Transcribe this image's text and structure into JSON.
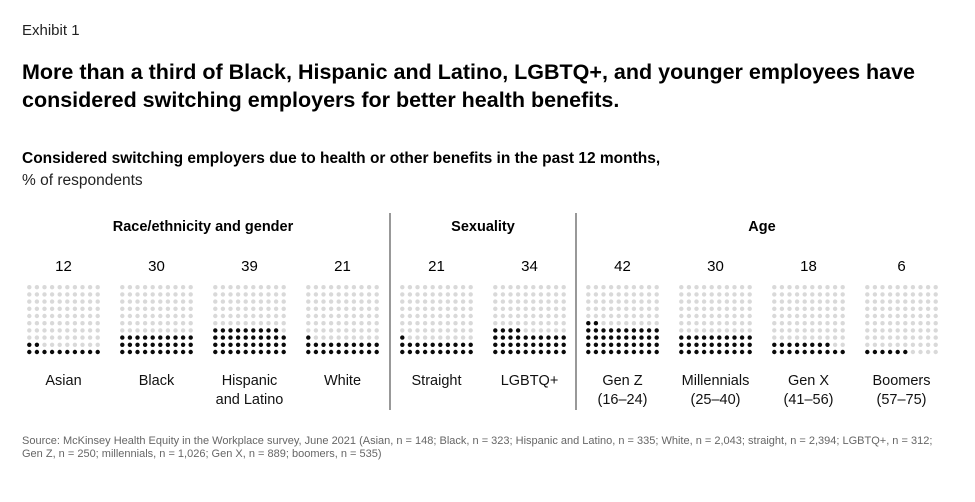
{
  "exhibit": "Exhibit 1",
  "title": "More than a third of Black, Hispanic and Latino, LGBTQ+, and younger employees have considered switching employers for better health benefits.",
  "subtitle": "Considered switching employers due to health or other benefits in the past 12 months,",
  "unit": "% of respondents",
  "source": "Source: McKinsey Health Equity in the Workplace survey, June 2021 (Asian, n = 148; Black, n = 323; Hispanic and Latino, n = 335; White, n = 2,043; straight, n = 2,394; LGBTQ+, n = 312; Gen Z, n = 250; millennials, n = 1,026; Gen X, n = 889; boomers, n = 535)",
  "colors": {
    "filled": "#0a0a0a",
    "empty": "#d9d9d9",
    "divider": "#555555"
  },
  "chart_data": {
    "type": "bar",
    "groups": [
      {
        "name": "Race/ethnicity and gender",
        "categories": [
          {
            "label": [
              "Asian"
            ],
            "value": 12
          },
          {
            "label": [
              "Black"
            ],
            "value": 30
          },
          {
            "label": [
              "Hispanic",
              "and Latino"
            ],
            "value": 39
          },
          {
            "label": [
              "White"
            ],
            "value": 21
          }
        ]
      },
      {
        "name": "Sexuality",
        "categories": [
          {
            "label": [
              "Straight"
            ],
            "value": 21
          },
          {
            "label": [
              "LGBTQ+"
            ],
            "value": 34
          }
        ]
      },
      {
        "name": "Age",
        "categories": [
          {
            "label": [
              "Gen Z",
              "(16–24)"
            ],
            "value": 42
          },
          {
            "label": [
              "Millennials",
              "(25–40)"
            ],
            "value": 30
          },
          {
            "label": [
              "Gen X",
              "(41–56)"
            ],
            "value": 18
          },
          {
            "label": [
              "Boomers",
              "(57–75)"
            ],
            "value": 6
          }
        ]
      }
    ]
  }
}
